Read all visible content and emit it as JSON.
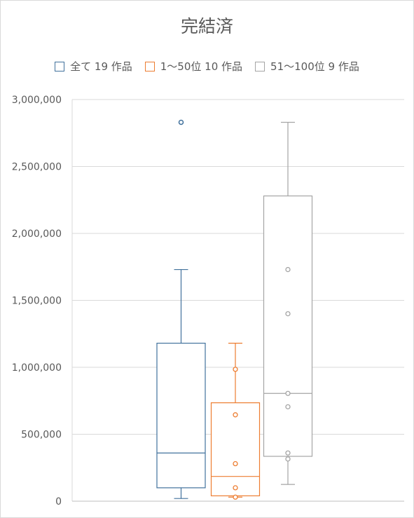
{
  "chart_data": {
    "type": "box",
    "title": "完結済",
    "ylim": [
      0,
      3000000
    ],
    "y_ticks": [
      "0",
      "500,000",
      "1,000,000",
      "1,500,000",
      "2,000,000",
      "2,500,000",
      "3,000,000"
    ],
    "y_tick_values": [
      0,
      500000,
      1000000,
      1500000,
      2000000,
      2500000,
      3000000
    ],
    "grid": true,
    "legend_position": "top",
    "series": [
      {
        "name": "全て 19 作品",
        "color": "#41719c",
        "min": 20000,
        "q1": 100000,
        "median": 360000,
        "q3": 1180000,
        "max": 1730000,
        "outliers": [
          2830000
        ],
        "inner_points": []
      },
      {
        "name": "1～50位 10 作品",
        "color": "#ed7d31",
        "min": 30000,
        "q1": 40000,
        "median": 185000,
        "q3": 735000,
        "max": 1180000,
        "outliers": [],
        "inner_points": [
          30000,
          100000,
          280000,
          645000,
          985000
        ]
      },
      {
        "name": "51～100位 9 作品",
        "color": "#a5a5a5",
        "min": 125000,
        "q1": 335000,
        "median": 805000,
        "q3": 2280000,
        "max": 2830000,
        "outliers": [],
        "inner_points": [
          315000,
          360000,
          705000,
          805000,
          1400000,
          1730000
        ]
      }
    ]
  }
}
